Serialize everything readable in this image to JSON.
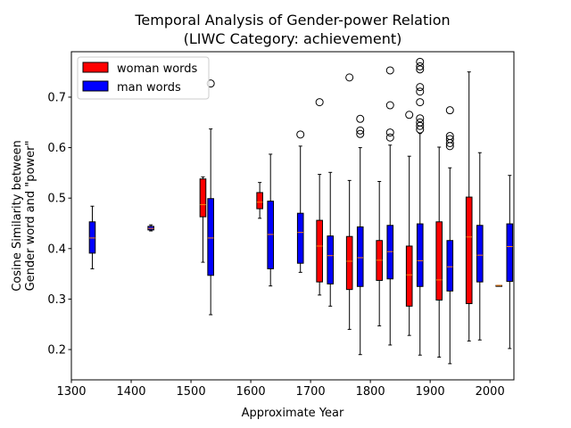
{
  "chart_data": {
    "type": "box",
    "title": "Temporal Analysis of Gender-power Relation",
    "subtitle": "(LIWC Category: achievement)",
    "xlabel": "Approximate Year",
    "ylabel_line1": "Cosine Similarity between",
    "ylabel_line2": "Gender word and \"power\"",
    "xlim": [
      1300,
      2040
    ],
    "ylim": [
      0.14,
      0.79
    ],
    "xticks": [
      1300,
      1400,
      1500,
      1600,
      1700,
      1800,
      1900,
      2000
    ],
    "yticks": [
      0.2,
      0.3,
      0.4,
      0.5,
      0.6,
      0.7
    ],
    "legend": [
      {
        "label": "woman words",
        "color": "#ff0000"
      },
      {
        "label": "man words",
        "color": "#0000ff"
      }
    ],
    "series": [
      {
        "name": "woman words",
        "color": "#ff0000",
        "boxes": [
          {
            "x": 1520,
            "whislo": 0.373,
            "q1": 0.463,
            "med": 0.487,
            "q3": 0.538,
            "whishi": 0.542,
            "fliers": []
          },
          {
            "x": 1615,
            "whislo": 0.46,
            "q1": 0.479,
            "med": 0.492,
            "q3": 0.511,
            "whishi": 0.531,
            "fliers": []
          },
          {
            "x": 1715,
            "whislo": 0.308,
            "q1": 0.334,
            "med": 0.405,
            "q3": 0.456,
            "whishi": 0.547,
            "fliers": [
              0.69
            ]
          },
          {
            "x": 1765,
            "whislo": 0.24,
            "q1": 0.319,
            "med": 0.375,
            "q3": 0.424,
            "whishi": 0.535,
            "fliers": [
              0.739
            ]
          },
          {
            "x": 1815,
            "whislo": 0.247,
            "q1": 0.337,
            "med": 0.377,
            "q3": 0.416,
            "whishi": 0.533,
            "fliers": []
          },
          {
            "x": 1865,
            "whislo": 0.228,
            "q1": 0.286,
            "med": 0.348,
            "q3": 0.405,
            "whishi": 0.583,
            "fliers": [
              0.665
            ]
          },
          {
            "x": 1915,
            "whislo": 0.185,
            "q1": 0.298,
            "med": 0.338,
            "q3": 0.453,
            "whishi": 0.601,
            "fliers": []
          },
          {
            "x": 1965,
            "whislo": 0.217,
            "q1": 0.291,
            "med": 0.423,
            "q3": 0.502,
            "whishi": 0.75,
            "fliers": []
          },
          {
            "x": 2015,
            "whislo": 0.327,
            "q1": 0.327,
            "med": 0.327,
            "q3": 0.327,
            "whishi": 0.327,
            "fliers": []
          }
        ]
      },
      {
        "name": "man words",
        "color": "#0000ff",
        "boxes": [
          {
            "x": 1335,
            "whislo": 0.36,
            "q1": 0.391,
            "med": 0.421,
            "q3": 0.453,
            "whishi": 0.484,
            "fliers": []
          },
          {
            "x": 1433,
            "whislo": 0.435,
            "q1": 0.437,
            "med": 0.44,
            "q3": 0.444,
            "whishi": 0.447,
            "fliers": []
          },
          {
            "x": 1533,
            "whislo": 0.269,
            "q1": 0.347,
            "med": 0.421,
            "q3": 0.499,
            "whishi": 0.637,
            "fliers": [
              0.727
            ]
          },
          {
            "x": 1633,
            "whislo": 0.326,
            "q1": 0.36,
            "med": 0.428,
            "q3": 0.494,
            "whishi": 0.587,
            "fliers": []
          },
          {
            "x": 1683,
            "whislo": 0.353,
            "q1": 0.371,
            "med": 0.432,
            "q3": 0.47,
            "whishi": 0.603,
            "fliers": [
              0.626
            ]
          },
          {
            "x": 1733,
            "whislo": 0.286,
            "q1": 0.33,
            "med": 0.386,
            "q3": 0.425,
            "whishi": 0.551,
            "fliers": []
          },
          {
            "x": 1783,
            "whislo": 0.19,
            "q1": 0.325,
            "med": 0.382,
            "q3": 0.443,
            "whishi": 0.6,
            "fliers": [
              0.627,
              0.634,
              0.657
            ]
          },
          {
            "x": 1833,
            "whislo": 0.209,
            "q1": 0.34,
            "med": 0.394,
            "q3": 0.446,
            "whishi": 0.605,
            "fliers": [
              0.62,
              0.63,
              0.684,
              0.753
            ]
          },
          {
            "x": 1883,
            "whislo": 0.189,
            "q1": 0.325,
            "med": 0.376,
            "q3": 0.449,
            "whishi": 0.628,
            "fliers": [
              0.636,
              0.643,
              0.65,
              0.658,
              0.69,
              0.711,
              0.72,
              0.755,
              0.761,
              0.77
            ]
          },
          {
            "x": 1933,
            "whislo": 0.172,
            "q1": 0.316,
            "med": 0.364,
            "q3": 0.416,
            "whishi": 0.56,
            "fliers": [
              0.603,
              0.609,
              0.617,
              0.623,
              0.674
            ]
          },
          {
            "x": 1983,
            "whislo": 0.219,
            "q1": 0.334,
            "med": 0.387,
            "q3": 0.446,
            "whishi": 0.59,
            "fliers": []
          },
          {
            "x": 2033,
            "whislo": 0.202,
            "q1": 0.335,
            "med": 0.404,
            "q3": 0.449,
            "whishi": 0.545,
            "fliers": []
          }
        ]
      }
    ]
  }
}
